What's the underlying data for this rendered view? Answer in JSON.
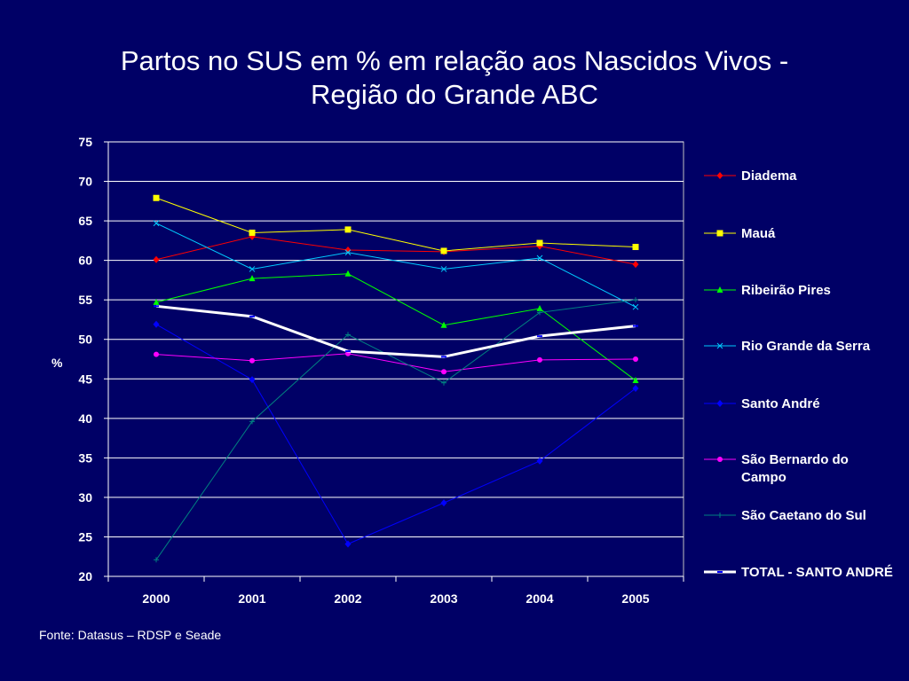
{
  "page": {
    "title_line1": "Partos no SUS em % em relação aos Nascidos Vivos -",
    "title_line2": "Região do Grande ABC",
    "source": "Fonte: Datasus – RDSP e Seade",
    "background": "#000066"
  },
  "chart_data": {
    "type": "line",
    "title": "Partos no SUS em % em relação aos Nascidos Vivos - Região do Grande ABC",
    "xlabel": "",
    "ylabel": "%",
    "ylim": [
      20,
      75
    ],
    "yticks": [
      20,
      25,
      30,
      35,
      40,
      45,
      50,
      55,
      60,
      65,
      70,
      75
    ],
    "grid": true,
    "legend_position": "right",
    "categories": [
      "2000",
      "2001",
      "2002",
      "2003",
      "2004",
      "2005"
    ],
    "series": [
      {
        "name": "Diadema",
        "color": "#ff0000",
        "marker": "diamond",
        "values": [
          60.1,
          63.0,
          61.3,
          61.1,
          61.8,
          59.5
        ]
      },
      {
        "name": "Mauá",
        "color": "#ffff00",
        "marker": "square",
        "values": [
          67.9,
          63.5,
          63.9,
          61.2,
          62.2,
          61.7
        ]
      },
      {
        "name": "Ribeirão Pires",
        "color": "#00ff00",
        "marker": "triangle",
        "values": [
          54.7,
          57.7,
          58.3,
          51.8,
          53.9,
          44.8
        ]
      },
      {
        "name": "Rio Grande da Serra",
        "color": "#00ccff",
        "marker": "x",
        "values": [
          64.7,
          58.9,
          61.0,
          58.9,
          60.3,
          54.1
        ]
      },
      {
        "name": "Santo André",
        "color": "#0000ff",
        "marker": "diamond",
        "values": [
          51.9,
          44.9,
          24.1,
          29.3,
          34.6,
          43.8
        ]
      },
      {
        "name": "São Bernardo do Campo",
        "color": "#ff00ff",
        "marker": "circle",
        "values": [
          48.1,
          47.3,
          48.2,
          45.9,
          47.4,
          47.5
        ]
      },
      {
        "name": "São Caetano do Sul",
        "color": "#008080",
        "marker": "plus",
        "values": [
          22.1,
          39.6,
          50.6,
          44.5,
          53.4,
          55.0
        ]
      },
      {
        "name": "TOTAL - SANTO ANDRÉ",
        "color": "#ffffff",
        "marker": "dash",
        "values": [
          54.2,
          52.9,
          48.5,
          47.8,
          50.4,
          51.7
        ]
      }
    ]
  }
}
